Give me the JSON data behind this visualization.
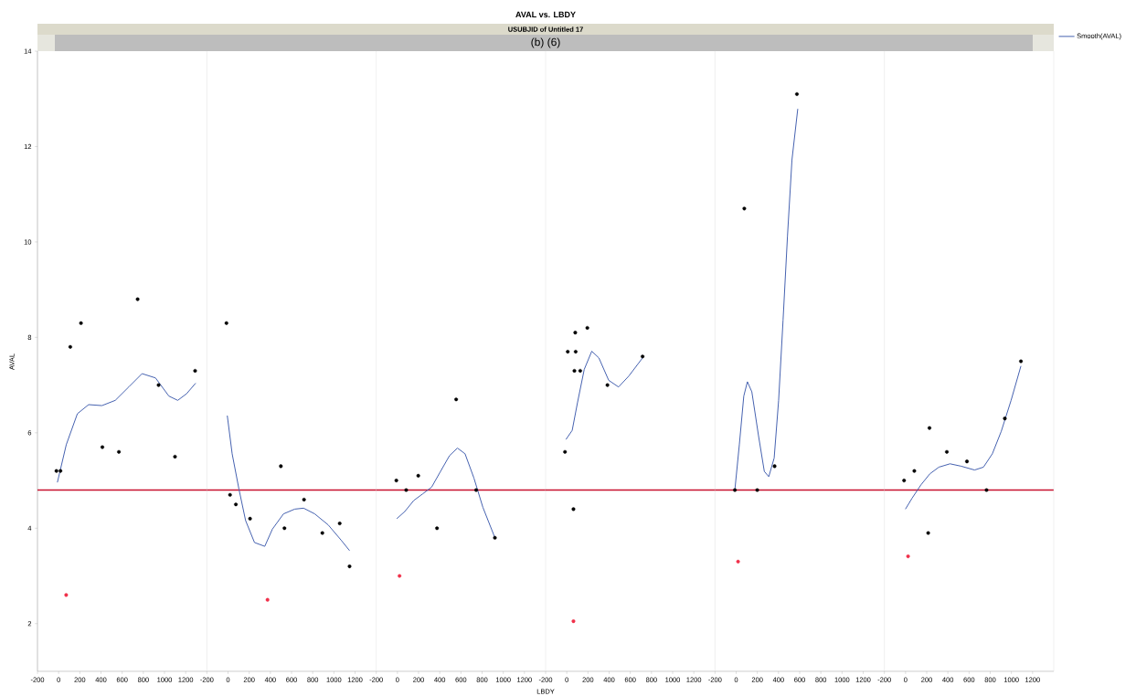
{
  "chart_data": [
    {
      "type": "scatter",
      "ylabel": "AVAL",
      "xlim": [
        -200,
        1400
      ],
      "ylim": [
        1,
        14
      ],
      "xticks": [
        -200,
        0,
        200,
        400,
        600,
        800,
        1000,
        1200
      ],
      "yticks": [
        2,
        4,
        6,
        8,
        10,
        12,
        14
      ],
      "ref_lines": [
        {
          "axis": "y",
          "value": 4.8,
          "color": "#c8102e"
        }
      ],
      "series": [
        {
          "color": "#000000",
          "marker": "circle",
          "x": [
            -21,
            17,
            110,
            211,
            413,
            569,
            746,
            944,
            1099,
            1289
          ],
          "values": [
            5.2,
            5.2,
            7.8,
            8.3,
            5.7,
            5.6,
            8.8,
            7.0,
            5.5,
            7.3
          ]
        },
        {
          "color": "#f0304a",
          "marker": "circle",
          "x": [
            71
          ],
          "values": [
            2.6
          ]
        },
        {
          "type": "line",
          "marker": "none",
          "color": "#4561b0",
          "x": [
            -12,
            72,
            177,
            283,
            409,
            535,
            662,
            788,
            915,
            1041,
            1125,
            1209,
            1294
          ],
          "values": [
            4.96,
            5.75,
            6.4,
            6.59,
            6.57,
            6.68,
            6.96,
            7.24,
            7.15,
            6.77,
            6.68,
            6.82,
            7.04
          ]
        }
      ]
    },
    {
      "type": "scatter",
      "xlim": [
        -200,
        1400
      ],
      "ylim": [
        1,
        14
      ],
      "xticks": [
        -200,
        0,
        200,
        400,
        600,
        800,
        1000,
        1200
      ],
      "yticks": [
        2,
        4,
        6,
        8,
        10,
        12,
        14
      ],
      "tick_labels": "x",
      "ref_lines": [
        {
          "axis": "y",
          "value": 4.8,
          "color": "#c8102e"
        }
      ],
      "series": [
        {
          "color": "#000000",
          "marker": "circle",
          "x": [
            -15,
            19,
            74,
            208,
            499,
            533,
            718,
            891,
            1055,
            1148
          ],
          "values": [
            8.3,
            4.7,
            4.5,
            4.2,
            5.3,
            4.0,
            4.6,
            3.9,
            4.1,
            3.2
          ]
        },
        {
          "color": "#f0304a",
          "marker": "circle",
          "x": [
            373
          ],
          "values": [
            2.5
          ]
        },
        {
          "type": "line",
          "marker": "none",
          "color": "#4561b0",
          "x": [
            -7,
            39,
            103,
            166,
            250,
            347,
            419,
            524,
            630,
            714,
            819,
            946,
            1072,
            1148
          ],
          "values": [
            6.36,
            5.56,
            4.82,
            4.16,
            3.7,
            3.62,
            3.98,
            4.3,
            4.4,
            4.42,
            4.3,
            4.07,
            3.74,
            3.53
          ]
        }
      ]
    },
    {
      "type": "scatter",
      "xlim": [
        -200,
        1400
      ],
      "ylim": [
        1,
        14
      ],
      "xticks": [
        -200,
        0,
        200,
        400,
        600,
        800,
        1000,
        1200
      ],
      "yticks": [
        2,
        4,
        6,
        8,
        10,
        12,
        14
      ],
      "tick_labels": "x",
      "ref_lines": [
        {
          "axis": "y",
          "value": 4.8,
          "color": "#c8102e"
        }
      ],
      "series": [
        {
          "color": "#000000",
          "marker": "circle",
          "x": [
            -10,
            83,
            197,
            374,
            555,
            744,
            921
          ],
          "values": [
            5.0,
            4.8,
            5.1,
            4.0,
            6.7,
            4.8,
            3.8
          ]
        },
        {
          "color": "#f0304a",
          "marker": "circle",
          "x": [
            20
          ],
          "values": [
            3.0
          ]
        },
        {
          "type": "line",
          "marker": "none",
          "color": "#4561b0",
          "x": [
            -6,
            70,
            154,
            239,
            323,
            407,
            492,
            567,
            639,
            723,
            807,
            921
          ],
          "values": [
            4.2,
            4.35,
            4.58,
            4.72,
            4.86,
            5.19,
            5.52,
            5.68,
            5.56,
            5.05,
            4.44,
            3.8
          ]
        }
      ]
    },
    {
      "type": "scatter",
      "xlim": [
        -200,
        1400
      ],
      "ylim": [
        1,
        14
      ],
      "xticks": [
        -200,
        0,
        200,
        400,
        600,
        800,
        1000,
        1200
      ],
      "yticks": [
        2,
        4,
        6,
        8,
        10,
        12,
        14
      ],
      "tick_labels": "x",
      "ref_lines": [
        {
          "axis": "y",
          "value": 4.8,
          "color": "#c8102e"
        }
      ],
      "series": [
        {
          "color": "#000000",
          "marker": "circle",
          "x": [
            -17,
            9,
            63,
            72,
            80,
            84,
            127,
            194,
            384,
            716
          ],
          "values": [
            5.6,
            7.7,
            4.4,
            7.3,
            8.1,
            7.7,
            7.3,
            8.2,
            7.0,
            7.6
          ]
        },
        {
          "color": "#f0304a",
          "marker": "circle",
          "x": [
            63
          ],
          "values": [
            2.05
          ]
        },
        {
          "type": "line",
          "marker": "none",
          "color": "#4561b0",
          "x": [
            -8,
            51,
            101,
            165,
            236,
            303,
            396,
            489,
            586,
            716
          ],
          "values": [
            5.86,
            6.05,
            6.63,
            7.33,
            7.71,
            7.57,
            7.1,
            6.96,
            7.19,
            7.57
          ]
        }
      ]
    },
    {
      "type": "scatter",
      "xlim": [
        -200,
        1400
      ],
      "ylim": [
        1,
        14
      ],
      "xticks": [
        -200,
        0,
        200,
        400,
        600,
        800,
        1000,
        1200
      ],
      "yticks": [
        2,
        4,
        6,
        8,
        10,
        12,
        14
      ],
      "tick_labels": "x",
      "ref_lines": [
        {
          "axis": "y",
          "value": 4.8,
          "color": "#c8102e"
        }
      ],
      "series": [
        {
          "color": "#000000",
          "marker": "circle",
          "x": [
            -12,
            77,
            199,
            363,
            574
          ],
          "values": [
            4.8,
            10.7,
            4.8,
            5.3,
            13.1
          ]
        },
        {
          "color": "#f0304a",
          "marker": "circle",
          "x": [
            18
          ],
          "values": [
            3.3
          ]
        },
        {
          "type": "line",
          "marker": "none",
          "color": "#4561b0",
          "x": [
            -12,
            30,
            72,
            106,
            148,
            211,
            266,
            308,
            359,
            401,
            443,
            485,
            527,
            582
          ],
          "values": [
            4.81,
            5.75,
            6.77,
            7.07,
            6.86,
            5.94,
            5.19,
            5.08,
            5.47,
            6.68,
            8.36,
            10.13,
            11.72,
            12.79
          ]
        }
      ]
    },
    {
      "type": "scatter",
      "xlim": [
        -200,
        1400
      ],
      "ylim": [
        1,
        14
      ],
      "xticks": [
        -200,
        0,
        200,
        400,
        600,
        800,
        1000,
        1200
      ],
      "yticks": [
        2,
        4,
        6,
        8,
        10,
        12,
        14
      ],
      "tick_labels": "x",
      "legend": "top right",
      "ref_lines": [
        {
          "axis": "y",
          "value": 4.8,
          "color": "#c8102e"
        }
      ],
      "series": [
        {
          "color": "#000000",
          "marker": "circle",
          "x": [
            -14,
            83,
            214,
            226,
            390,
            580,
            765,
            938,
            1090
          ],
          "values": [
            5.0,
            5.2,
            3.9,
            6.1,
            5.6,
            5.4,
            4.8,
            6.3,
            7.5
          ]
        },
        {
          "color": "#f0304a",
          "marker": "circle",
          "x": [
            24
          ],
          "values": [
            3.41
          ]
        },
        {
          "type": "line",
          "marker": "none",
          "name": "Smooth(AVAL)",
          "color": "#4561b0",
          "x": [
            -1,
            62,
            146,
            230,
            315,
            420,
            525,
            652,
            736,
            820,
            904,
            997,
            1090
          ],
          "values": [
            4.4,
            4.63,
            4.91,
            5.14,
            5.28,
            5.35,
            5.3,
            5.22,
            5.28,
            5.56,
            6.03,
            6.68,
            7.4
          ]
        }
      ]
    },
    {
      "type": "other",
      "title": "AVAL vs. LBDY",
      "subtitle": "USUBJID of Untitled 17",
      "annotations": [
        "(b) (6)"
      ],
      "xlabel": "LBDY"
    }
  ]
}
